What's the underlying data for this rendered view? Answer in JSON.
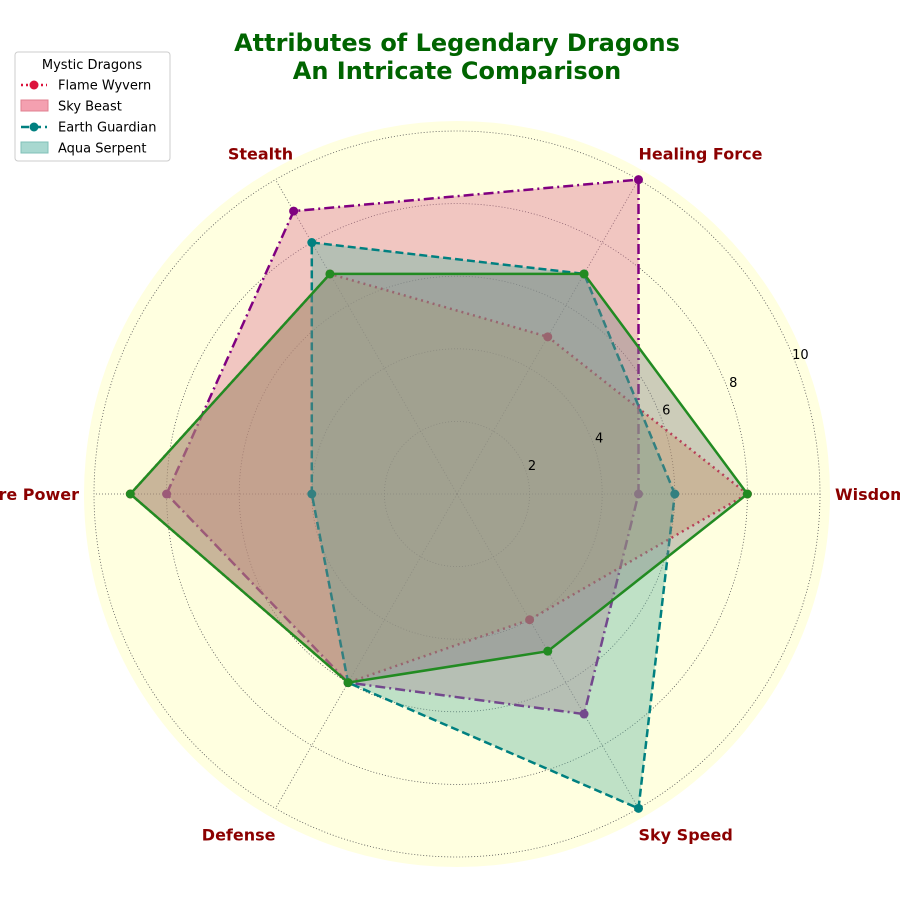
{
  "chart_data": {
    "type": "radar",
    "title": "Attributes of Legendary Dragons",
    "subtitle": "An Intricate Comparison",
    "categories": [
      "Wisdom",
      "Healing Force",
      "Stealth",
      "Fire Power",
      "Defense",
      "Sky Speed"
    ],
    "rlim": [
      0,
      10
    ],
    "r_ticks": [
      "2",
      "4",
      "6",
      "8",
      "10"
    ],
    "grid": true,
    "legend": {
      "title": "Mystic Dragons",
      "position": "top-left",
      "entries": [
        "Flame Wyvern",
        "Sky Beast",
        "Earth Guardian",
        "Aqua Serpent"
      ]
    },
    "series": [
      {
        "name": "Sky Beast",
        "values": [
          5,
          10,
          9,
          8,
          6,
          7
        ],
        "line_color": "#800080",
        "fill_color": "#db7093",
        "line_style": "dashdot"
      },
      {
        "name": "Flame Wyvern",
        "values": [
          8,
          5,
          7,
          9,
          6,
          4
        ],
        "line_color": "#dc143c",
        "fill_color": "#f4a460",
        "line_style": "dotted"
      },
      {
        "name": "Aqua Serpent",
        "values": [
          6,
          7,
          8,
          4,
          6,
          10
        ],
        "line_color": "#008080",
        "fill_color": "#5fb4a0",
        "line_style": "dashed"
      },
      {
        "name": "Earth Guardian",
        "values": [
          8,
          7,
          7,
          9,
          6,
          5
        ],
        "line_color": "#228b22",
        "fill_color": "#808080",
        "line_style": "solid"
      }
    ],
    "colors": {
      "background": "#ffffe0",
      "title": "#006400",
      "category_labels": "#8b0000"
    }
  }
}
